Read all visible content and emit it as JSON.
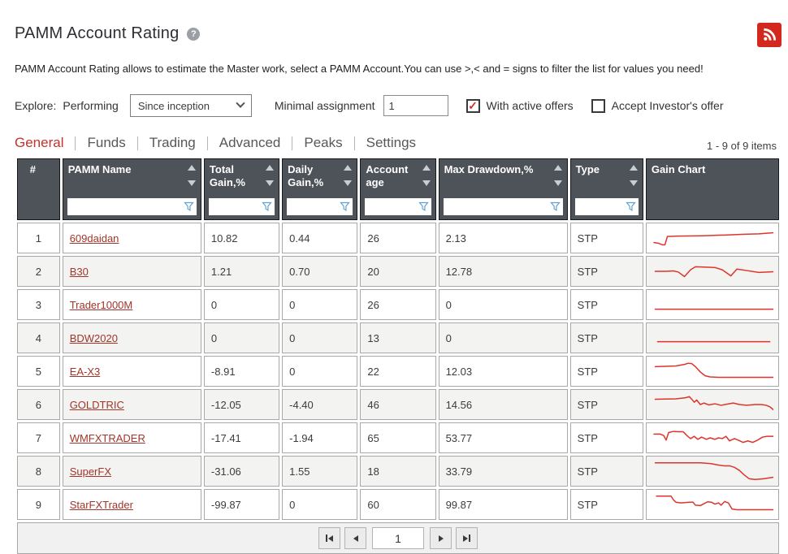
{
  "header": {
    "title": "PAMM Account Rating",
    "help_icon": "question-mark-icon",
    "rss_icon": "rss-icon"
  },
  "description": "PAMM Account Rating allows to estimate the Master work, select a PAMM Account.You can use >,< and = signs to filter the list for values you need!",
  "filters": {
    "explore_label": "Explore:",
    "performing_label": "Performing",
    "period_select_value": "Since inception",
    "minimal_assignment_label": "Minimal assignment",
    "minimal_assignment_value": "1",
    "with_active_offers": {
      "label": "With active offers",
      "checked": true
    },
    "accept_investors_offer": {
      "label": "Accept Investor's offer",
      "checked": false
    }
  },
  "tabs": {
    "items": [
      {
        "label": "General",
        "active": true
      },
      {
        "label": "Funds",
        "active": false
      },
      {
        "label": "Trading",
        "active": false
      },
      {
        "label": "Advanced",
        "active": false
      },
      {
        "label": "Peaks",
        "active": false
      },
      {
        "label": "Settings",
        "active": false
      }
    ]
  },
  "items_count": "1 - 9 of 9 items",
  "table": {
    "columns": [
      {
        "key": "index",
        "label": "#",
        "sortable": false,
        "filterable": false,
        "align": "center"
      },
      {
        "key": "name",
        "label": "PAMM Name",
        "sortable": true,
        "filterable": true
      },
      {
        "key": "total_gain",
        "label": "Total Gain,%",
        "sortable": true,
        "filterable": true
      },
      {
        "key": "daily_gain",
        "label": "Daily Gain,%",
        "sortable": true,
        "filterable": true
      },
      {
        "key": "account_age",
        "label": "Account age",
        "sortable": true,
        "filterable": true
      },
      {
        "key": "max_drawdown",
        "label": "Max Drawdown,%",
        "sortable": true,
        "filterable": true
      },
      {
        "key": "type",
        "label": "Type",
        "sortable": true,
        "filterable": true
      },
      {
        "key": "gain_chart",
        "label": "Gain Chart",
        "sortable": false,
        "filterable": false
      }
    ],
    "rows": [
      {
        "index": "1",
        "name": "609daidan",
        "total_gain": "10.82",
        "daily_gain": "0.44",
        "account_age": "26",
        "max_drawdown": "2.13",
        "type": "STP",
        "sparkline": [
          [
            2,
            21
          ],
          [
            6,
            22
          ],
          [
            9,
            24
          ],
          [
            11,
            24
          ],
          [
            13,
            13
          ],
          [
            22,
            12.5
          ],
          [
            42,
            12
          ],
          [
            62,
            11
          ],
          [
            76,
            10
          ],
          [
            88,
            9.5
          ],
          [
            100,
            8
          ]
        ]
      },
      {
        "index": "2",
        "name": "B30",
        "total_gain": "1.21",
        "daily_gain": "0.70",
        "account_age": "20",
        "max_drawdown": "12.78",
        "type": "STP",
        "sparkline": [
          [
            3,
            15
          ],
          [
            12,
            15
          ],
          [
            18,
            14.5
          ],
          [
            22,
            16
          ],
          [
            27,
            22
          ],
          [
            32,
            13
          ],
          [
            36,
            9
          ],
          [
            45,
            9.5
          ],
          [
            52,
            10
          ],
          [
            58,
            13
          ],
          [
            65,
            21
          ],
          [
            70,
            12
          ],
          [
            78,
            14
          ],
          [
            88,
            16.5
          ],
          [
            95,
            16
          ],
          [
            100,
            15.5
          ]
        ]
      },
      {
        "index": "3",
        "name": "Trader1000M",
        "total_gain": "0",
        "daily_gain": "0",
        "account_age": "26",
        "max_drawdown": "0",
        "type": "STP",
        "sparkline": [
          [
            3,
            21
          ],
          [
            100,
            21
          ]
        ]
      },
      {
        "index": "4",
        "name": "BDW2020",
        "total_gain": "0",
        "daily_gain": "0",
        "account_age": "13",
        "max_drawdown": "0",
        "type": "STP",
        "sparkline": [
          [
            5,
            20
          ],
          [
            97,
            20
          ]
        ]
      },
      {
        "index": "5",
        "name": "EA-X3",
        "total_gain": "-8.91",
        "daily_gain": "0",
        "account_age": "22",
        "max_drawdown": "12.03",
        "type": "STP",
        "sparkline": [
          [
            3,
            9
          ],
          [
            20,
            8
          ],
          [
            27,
            6
          ],
          [
            30,
            4.5
          ],
          [
            33,
            5
          ],
          [
            36,
            9
          ],
          [
            40,
            16
          ],
          [
            44,
            21
          ],
          [
            48,
            22.5
          ],
          [
            55,
            23
          ],
          [
            100,
            23
          ]
        ]
      },
      {
        "index": "6",
        "name": "GOLDTRIC",
        "total_gain": "-12.05",
        "daily_gain": "-4.40",
        "account_age": "46",
        "max_drawdown": "14.56",
        "type": "STP",
        "sparkline": [
          [
            3,
            8
          ],
          [
            20,
            7.5
          ],
          [
            28,
            6
          ],
          [
            31,
            4.5
          ],
          [
            33,
            8
          ],
          [
            35,
            12
          ],
          [
            37,
            9
          ],
          [
            40,
            15
          ],
          [
            43,
            13
          ],
          [
            47,
            15.5
          ],
          [
            52,
            14
          ],
          [
            57,
            16
          ],
          [
            62,
            14.5
          ],
          [
            67,
            13
          ],
          [
            72,
            15
          ],
          [
            78,
            16
          ],
          [
            85,
            15
          ],
          [
            90,
            15
          ],
          [
            94,
            16
          ],
          [
            97,
            18
          ],
          [
            100,
            22
          ]
        ]
      },
      {
        "index": "7",
        "name": "WMFXTRADER",
        "total_gain": "-17.41",
        "daily_gain": "-1.94",
        "account_age": "65",
        "max_drawdown": "53.77",
        "type": "STP",
        "sparkline": [
          [
            2,
            10
          ],
          [
            7,
            10
          ],
          [
            10,
            12
          ],
          [
            12,
            18
          ],
          [
            14,
            8
          ],
          [
            18,
            6.5
          ],
          [
            22,
            7
          ],
          [
            26,
            7
          ],
          [
            29,
            12
          ],
          [
            32,
            16
          ],
          [
            35,
            13
          ],
          [
            38,
            17
          ],
          [
            41,
            14
          ],
          [
            45,
            17
          ],
          [
            48,
            15
          ],
          [
            52,
            17
          ],
          [
            55,
            15
          ],
          [
            58,
            16
          ],
          [
            61,
            13
          ],
          [
            64,
            19
          ],
          [
            68,
            16
          ],
          [
            71,
            18
          ],
          [
            75,
            21
          ],
          [
            79,
            19
          ],
          [
            83,
            21
          ],
          [
            87,
            18
          ],
          [
            91,
            14
          ],
          [
            95,
            13
          ],
          [
            100,
            13
          ]
        ]
      },
      {
        "index": "8",
        "name": "SuperFX",
        "total_gain": "-31.06",
        "daily_gain": "1.55",
        "account_age": "18",
        "max_drawdown": "33.79",
        "type": "STP",
        "sparkline": [
          [
            3,
            4
          ],
          [
            40,
            4
          ],
          [
            48,
            5
          ],
          [
            55,
            7
          ],
          [
            60,
            8
          ],
          [
            64,
            8
          ],
          [
            68,
            10
          ],
          [
            72,
            14
          ],
          [
            76,
            20
          ],
          [
            80,
            25
          ],
          [
            85,
            26
          ],
          [
            92,
            25
          ],
          [
            100,
            23
          ]
        ]
      },
      {
        "index": "9",
        "name": "StarFXTrader",
        "total_gain": "-99.87",
        "daily_gain": "0",
        "account_age": "60",
        "max_drawdown": "99.87",
        "type": "STP",
        "sparkline": [
          [
            4,
            4
          ],
          [
            16,
            4
          ],
          [
            18,
            9
          ],
          [
            20,
            12
          ],
          [
            24,
            13
          ],
          [
            28,
            12.5
          ],
          [
            31,
            12
          ],
          [
            34,
            12
          ],
          [
            36,
            16
          ],
          [
            40,
            16.5
          ],
          [
            43,
            14
          ],
          [
            46,
            11.5
          ],
          [
            49,
            12
          ],
          [
            52,
            14.5
          ],
          [
            55,
            13
          ],
          [
            57,
            16
          ],
          [
            60,
            11
          ],
          [
            63,
            13
          ],
          [
            66,
            21
          ],
          [
            70,
            22
          ],
          [
            100,
            22
          ]
        ]
      }
    ]
  },
  "pagination": {
    "page_value": "1"
  },
  "colors": {
    "accent_red": "#c5322b",
    "link_red": "#a2352a",
    "header_bg": "#4e535a",
    "sparkline_red": "#dd352b",
    "funnel_blue": "#63a0d8",
    "rss_red": "#d3281e",
    "check_red": "#cc3328"
  }
}
